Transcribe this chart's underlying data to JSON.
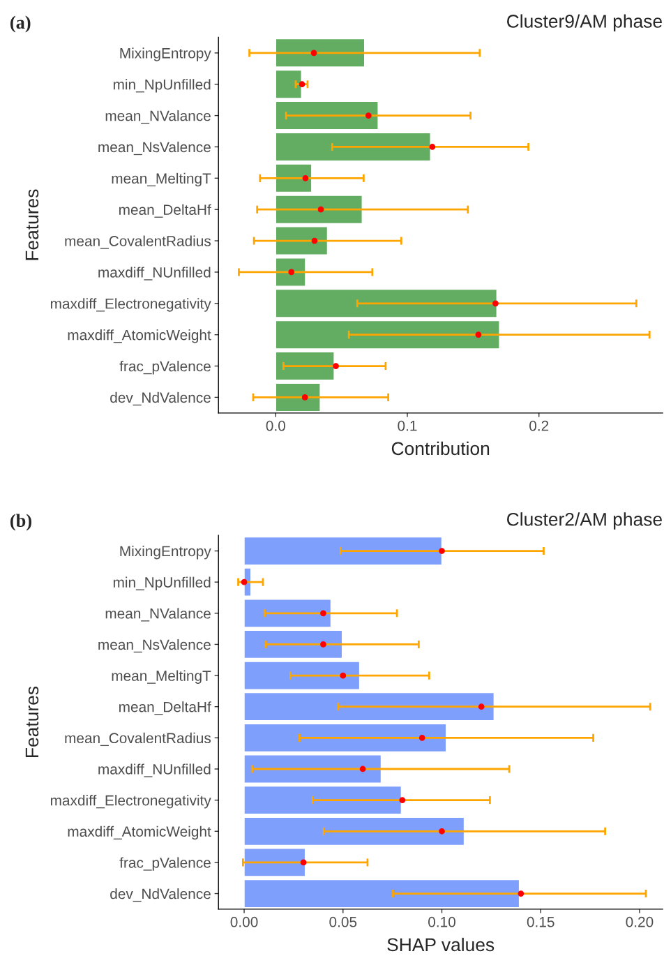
{
  "chart_data": [
    {
      "type": "bar",
      "orientation": "horizontal",
      "title": "Cluster9/AM phase",
      "annotations": [
        "(a)"
      ],
      "xlabel": "Contribution",
      "ylabel": "Features",
      "categories": [
        "MixingEntropy",
        "min_NpUnfilled",
        "mean_NValance",
        "mean_NsValence",
        "mean_MeltingT",
        "mean_DeltaHf",
        "mean_CovalentRadius",
        "maxdiff_NUnfilled",
        "maxdiff_Electronegativity",
        "maxdiff_AtomicWeight",
        "frac_pValence",
        "dev_NdValence"
      ],
      "series": [
        {
          "color": "#63ad62",
          "values": [
            0.0675,
            0.0196,
            0.0778,
            0.1176,
            0.0273,
            0.0657,
            0.0393,
            0.0226,
            0.168,
            0.17,
            0.0444,
            0.0338
          ]
        },
        {
          "type": "scatter",
          "color": "#ff0000",
          "values": [
            0.029,
            0.02,
            0.0705,
            0.119,
            0.0226,
            0.0343,
            0.0295,
            0.0119,
            0.167,
            0.154,
            0.0457,
            0.0222
          ],
          "errors": [
            [
              -0.02,
              0.155
            ],
            [
              0.0152,
              0.0242
            ],
            [
              0.0079,
              0.148
            ],
            [
              0.0429,
              0.192
            ],
            [
              -0.0119,
              0.0668
            ],
            [
              -0.0141,
              0.146
            ],
            [
              -0.0165,
              0.0954
            ],
            [
              -0.028,
              0.0734
            ],
            [
              0.062,
              0.274
            ],
            [
              0.0556,
              0.284
            ],
            [
              0.0059,
              0.0835
            ],
            [
              -0.0171,
              0.0855
            ]
          ]
        }
      ],
      "xlim": [
        -0.0435,
        0.294
      ],
      "xticks": [
        {
          "value": 0,
          "label": "0.0"
        },
        0.1,
        0.2
      ],
      "grid": false
    },
    {
      "type": "bar",
      "orientation": "horizontal",
      "title": "Cluster2/AM phase",
      "annotations": [
        "(b)"
      ],
      "xlabel": "SHAP values",
      "ylabel": "Features",
      "categories": [
        "MixingEntropy",
        "min_NpUnfilled",
        "mean_NValance",
        "mean_NsValence",
        "mean_MeltingT",
        "mean_DeltaHf",
        "mean_CovalentRadius",
        "maxdiff_NUnfilled",
        "maxdiff_Electronegativity",
        "maxdiff_AtomicWeight",
        "frac_pValence",
        "dev_NdValence"
      ],
      "series": [
        {
          "color": "#7f9ffd",
          "values": [
            0.1,
            0.0034,
            0.0439,
            0.0496,
            0.0584,
            0.1264,
            0.1022,
            0.0693,
            0.0795,
            0.1113,
            0.0309,
            0.1392
          ]
        },
        {
          "type": "scatter",
          "color": "#ff0000",
          "values": [
            0.1,
            0.0,
            0.04,
            0.04,
            0.05,
            0.12,
            0.09,
            0.06,
            0.08,
            0.1,
            0.03,
            0.14
          ],
          "errors": [
            [
              0.0488,
              0.1515
            ],
            [
              -0.003,
              0.0095
            ],
            [
              0.0105,
              0.0773
            ],
            [
              0.011,
              0.0883
            ],
            [
              0.0234,
              0.0936
            ],
            [
              0.0476,
              0.2054
            ],
            [
              0.028,
              0.1766
            ],
            [
              0.0042,
              0.1341
            ],
            [
              0.0347,
              0.1243
            ],
            [
              0.0403,
              0.1826
            ],
            [
              -0.0006,
              0.0624
            ],
            [
              0.0753,
              0.2032
            ]
          ]
        }
      ],
      "xlim": [
        -0.013,
        0.2117
      ],
      "xticks": [
        {
          "value": 0,
          "label": "0.00"
        },
        {
          "value": 0.05,
          "label": "0.05"
        },
        {
          "value": 0.1,
          "label": "0.10"
        },
        {
          "value": 0.15,
          "label": "0.15"
        },
        {
          "value": 0.2,
          "label": "0.20"
        }
      ],
      "grid": false
    }
  ]
}
